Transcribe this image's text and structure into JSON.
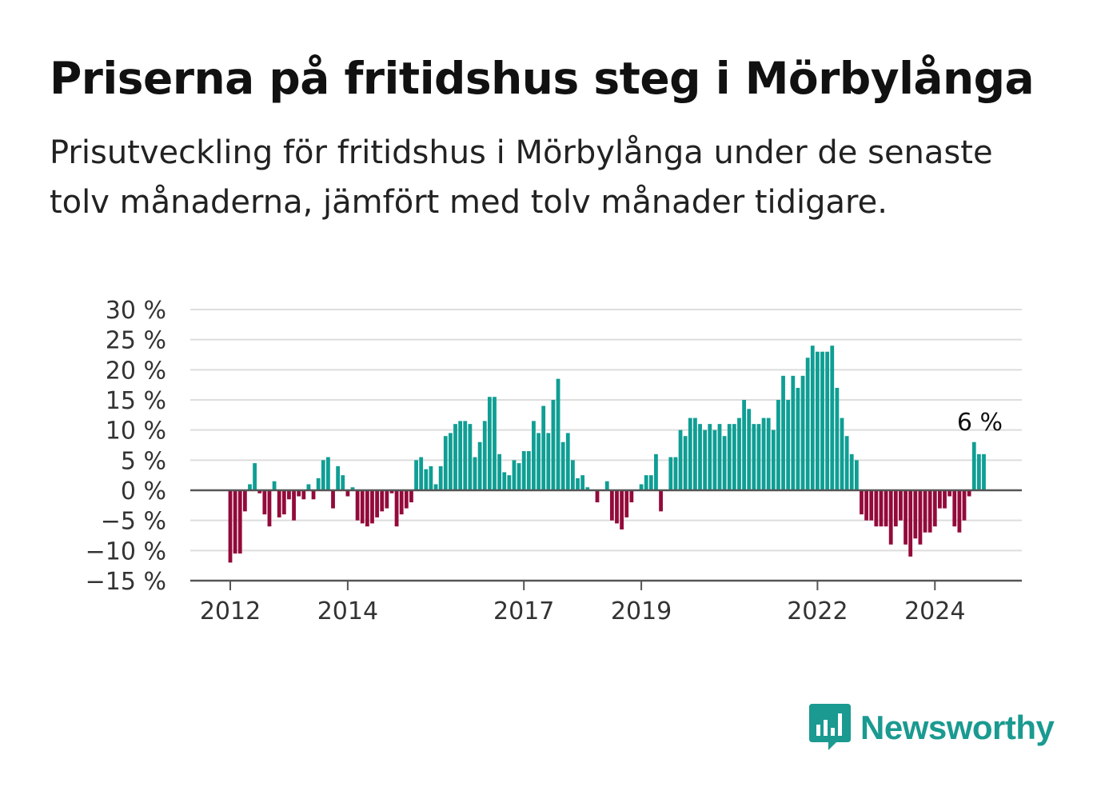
{
  "header": {
    "title": "Priserna på fritidshus steg i Mörbylånga",
    "subtitle": "Prisutveckling för fritidshus i Mörbylånga under de senaste tolv månaderna, jämfört med tolv månader tidigare."
  },
  "brand": {
    "name": "Newsworthy",
    "color": "#1a9a90",
    "icon": "bar-chart-speech-bubble-icon"
  },
  "chart_data": {
    "type": "bar",
    "title": "",
    "xlabel": "",
    "ylabel": "",
    "ylim": [
      -15,
      30
    ],
    "yticks": [
      -15,
      -10,
      -5,
      0,
      5,
      10,
      15,
      20,
      25,
      30
    ],
    "ytick_labels": [
      "−15 %",
      "−10 %",
      "−5 %",
      "0 %",
      "5 %",
      "10 %",
      "15 %",
      "20 %",
      "25 %",
      "30 %"
    ],
    "xticks": [
      "2012",
      "2014",
      "2017",
      "2019",
      "2022",
      "2024"
    ],
    "grid": true,
    "legend": "none",
    "colors": {
      "positive": "#0f9e94",
      "negative": "#930a3a",
      "grid": "#dddddd",
      "axis": "#555555"
    },
    "start": "2012-01",
    "frequency": "monthly",
    "unit": "%",
    "last_label": "6 %",
    "values": [
      -12,
      -10.5,
      -10.5,
      -3.5,
      1,
      4.5,
      -0.5,
      -4,
      -6,
      1.5,
      -4.5,
      -4,
      -1.5,
      -5,
      -1,
      -1.5,
      1,
      -1.5,
      2,
      5,
      5.5,
      -3,
      4,
      2.5,
      -1,
      0.5,
      -5,
      -5.5,
      -6,
      -5.5,
      -4.5,
      -3.5,
      -3,
      -0.5,
      -6,
      -4,
      -3,
      -2,
      5,
      5.5,
      3.5,
      4,
      1,
      4,
      9,
      9.5,
      11,
      11.5,
      11.5,
      11,
      5.5,
      8,
      11.5,
      15.5,
      15.5,
      6,
      3,
      2.5,
      5,
      4.5,
      6.5,
      6.5,
      11.5,
      9.5,
      14,
      9.5,
      15,
      18.5,
      8,
      9.5,
      5,
      2,
      2.5,
      0.5,
      0,
      -2,
      0,
      1.5,
      -5,
      -5.5,
      -6.5,
      -4.5,
      -2,
      0,
      1,
      2.5,
      2.5,
      6,
      -3.5,
      0,
      5.5,
      5.5,
      10,
      9,
      12,
      12,
      11,
      10,
      11,
      10,
      11,
      9,
      11,
      11,
      12,
      15,
      13.5,
      11,
      11,
      12,
      12,
      10,
      15,
      19,
      15,
      19,
      17,
      19,
      22,
      24,
      23,
      23,
      23,
      24,
      17,
      12,
      9,
      6,
      5,
      -4,
      -5,
      -5,
      -6,
      -6,
      -6,
      -9,
      -6,
      -5,
      -9,
      -11,
      -8,
      -9,
      -7,
      -7,
      -6,
      -3,
      -3,
      -1,
      -6,
      -7,
      -5,
      -1,
      8,
      6,
      6
    ]
  }
}
